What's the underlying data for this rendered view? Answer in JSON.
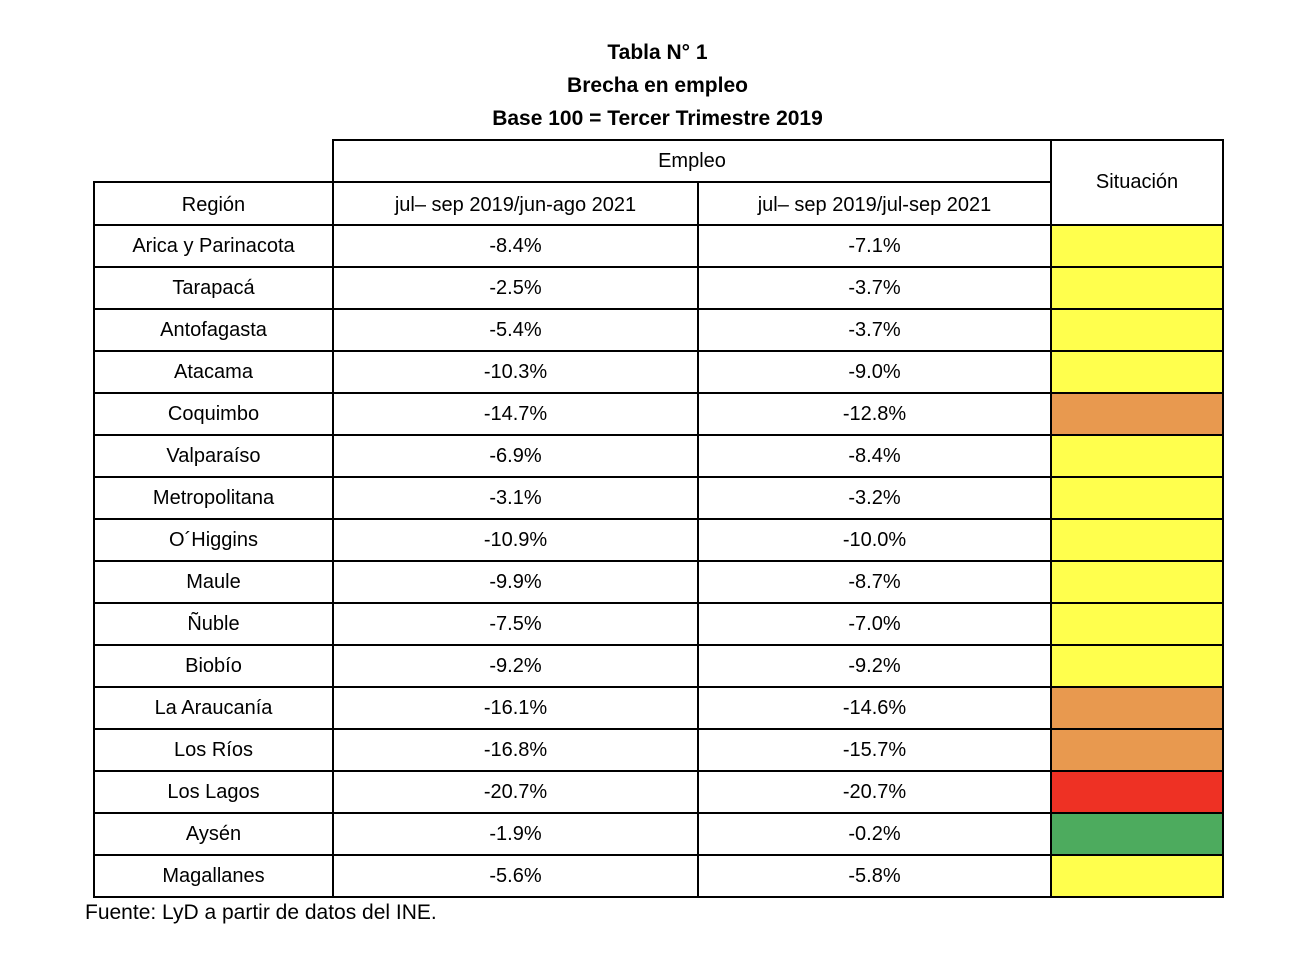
{
  "title": {
    "line1": "Tabla N° 1",
    "line2": "Brecha en empleo",
    "line3": "Base 100 = Tercer Trimestre 2019"
  },
  "table": {
    "headers": {
      "empleo": "Empleo",
      "situacion": "Situación",
      "region": "Región",
      "col1": "jul– sep 2019/jun-ago 2021",
      "col2": "jul– sep 2019/jul-sep 2021"
    },
    "rows": [
      {
        "region": "Arica y Parinacota",
        "gap1": "-8.4%",
        "gap2": "-7.1%",
        "situacion": "yellow"
      },
      {
        "region": "Tarapacá",
        "gap1": "-2.5%",
        "gap2": "-3.7%",
        "situacion": "yellow"
      },
      {
        "region": "Antofagasta",
        "gap1": "-5.4%",
        "gap2": "-3.7%",
        "situacion": "yellow"
      },
      {
        "region": "Atacama",
        "gap1": "-10.3%",
        "gap2": "-9.0%",
        "situacion": "yellow"
      },
      {
        "region": "Coquimbo",
        "gap1": "-14.7%",
        "gap2": "-12.8%",
        "situacion": "orange"
      },
      {
        "region": "Valparaíso",
        "gap1": "-6.9%",
        "gap2": "-8.4%",
        "situacion": "yellow"
      },
      {
        "region": "Metropolitana",
        "gap1": "-3.1%",
        "gap2": "-3.2%",
        "situacion": "yellow"
      },
      {
        "region": "O´Higgins",
        "gap1": "-10.9%",
        "gap2": "-10.0%",
        "situacion": "yellow"
      },
      {
        "region": "Maule",
        "gap1": "-9.9%",
        "gap2": "-8.7%",
        "situacion": "yellow"
      },
      {
        "region": "Ñuble",
        "gap1": "-7.5%",
        "gap2": "-7.0%",
        "situacion": "yellow"
      },
      {
        "region": "Biobío",
        "gap1": "-9.2%",
        "gap2": "-9.2%",
        "situacion": "yellow"
      },
      {
        "region": "La Araucanía",
        "gap1": "-16.1%",
        "gap2": "-14.6%",
        "situacion": "orange"
      },
      {
        "region": "Los Ríos",
        "gap1": "-16.8%",
        "gap2": "-15.7%",
        "situacion": "orange"
      },
      {
        "region": "Los Lagos",
        "gap1": "-20.7%",
        "gap2": "-20.7%",
        "situacion": "red"
      },
      {
        "region": "Aysén",
        "gap1": "-1.9%",
        "gap2": "-0.2%",
        "situacion": "green"
      },
      {
        "region": "Magallanes",
        "gap1": "-5.6%",
        "gap2": "-5.8%",
        "situacion": "yellow"
      }
    ]
  },
  "colors": {
    "yellow": "#FFFF4D",
    "orange": "#E8994F",
    "red": "#EE3124",
    "green": "#4DAB5E",
    "border": "#000000"
  },
  "footer": {
    "source": "Fuente: LyD a partir de datos del INE."
  },
  "chart_data": {
    "type": "table",
    "title": "Tabla N° 1 Brecha en empleo Base 100 = Tercer Trimestre 2019",
    "columns": [
      "Región",
      "jul– sep 2019/jun-ago 2021",
      "jul– sep 2019/jul-sep 2021",
      "Situación"
    ],
    "rows": [
      [
        "Arica y Parinacota",
        "-8.4%",
        "-7.1%",
        "yellow"
      ],
      [
        "Tarapacá",
        "-2.5%",
        "-3.7%",
        "yellow"
      ],
      [
        "Antofagasta",
        "-5.4%",
        "-3.7%",
        "yellow"
      ],
      [
        "Atacama",
        "-10.3%",
        "-9.0%",
        "yellow"
      ],
      [
        "Coquimbo",
        "-14.7%",
        "-12.8%",
        "orange"
      ],
      [
        "Valparaíso",
        "-6.9%",
        "-8.4%",
        "yellow"
      ],
      [
        "Metropolitana",
        "-3.1%",
        "-3.2%",
        "yellow"
      ],
      [
        "O´Higgins",
        "-10.9%",
        "-10.0%",
        "yellow"
      ],
      [
        "Maule",
        "-9.9%",
        "-8.7%",
        "yellow"
      ],
      [
        "Ñuble",
        "-7.5%",
        "-7.0%",
        "yellow"
      ],
      [
        "Biobío",
        "-9.2%",
        "-9.2%",
        "yellow"
      ],
      [
        "La Araucanía",
        "-16.1%",
        "-14.6%",
        "orange"
      ],
      [
        "Los Ríos",
        "-16.8%",
        "-15.7%",
        "orange"
      ],
      [
        "Los Lagos",
        "-20.7%",
        "-20.7%",
        "red"
      ],
      [
        "Aysén",
        "-1.9%",
        "-0.2%",
        "green"
      ],
      [
        "Magallanes",
        "-5.6%",
        "-5.8%",
        "yellow"
      ]
    ],
    "source_note": "Fuente: LyD a partir de datos del INE."
  }
}
